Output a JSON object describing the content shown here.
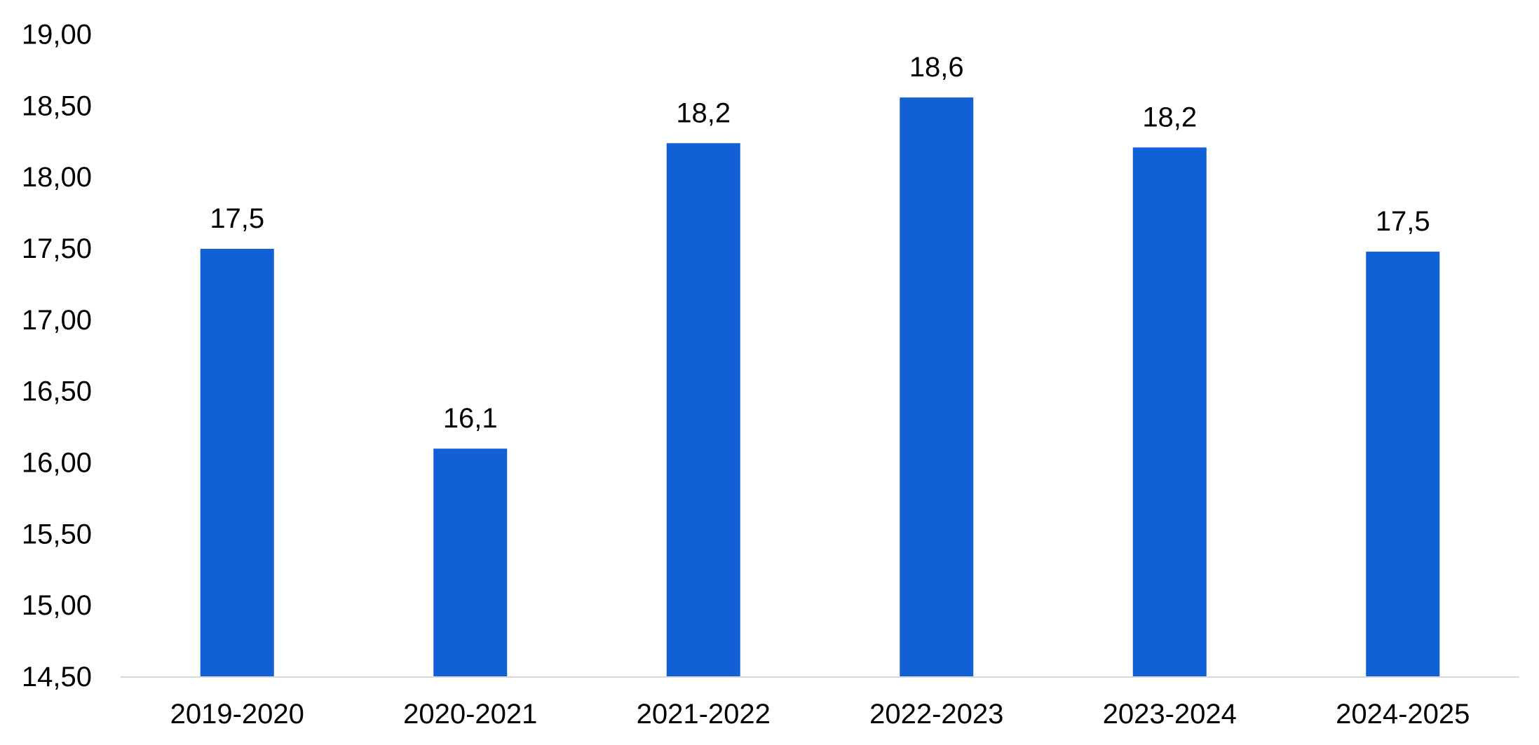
{
  "chart_data": {
    "type": "bar",
    "categories": [
      "2019-2020",
      "2020-2021",
      "2021-2022",
      "2022-2023",
      "2023-2024",
      "2024-2025"
    ],
    "values": [
      17.5,
      16.1,
      18.24,
      18.56,
      18.21,
      17.48
    ],
    "data_labels": [
      "17,5",
      "16,1",
      "18,2",
      "18,6",
      "18,2",
      "17,5"
    ],
    "y_ticks": [
      14.5,
      15.0,
      15.5,
      16.0,
      16.5,
      17.0,
      17.5,
      18.0,
      18.5,
      19.0
    ],
    "y_tick_labels": [
      "14,50",
      "15,00",
      "15,50",
      "16,00",
      "16,50",
      "17,00",
      "17,50",
      "18,00",
      "18,50",
      "19,00"
    ],
    "ylim": [
      14.5,
      19.0
    ],
    "grid": false,
    "legend": "none",
    "bar_color": "#1260D6",
    "axis_color": "#D9D9D9"
  }
}
